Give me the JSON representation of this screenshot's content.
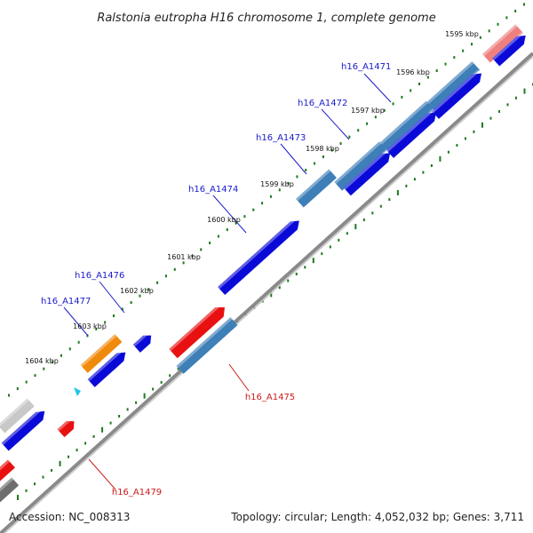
{
  "title": "Ralstonia eutropha H16 chromosome 1, complete genome",
  "footer": {
    "accession": "Accession: NC_008313",
    "topology": "Topology: circular; Length: 4,052,032 bp; Genes: 3,711"
  },
  "ticks": [
    "1595 kbp",
    "1596 kbp",
    "1597 kbp",
    "1598 kbp",
    "1599 kbp",
    "1600 kbp",
    "1601 kbp",
    "1602 kbp",
    "1603 kbp",
    "1604 kbp"
  ],
  "gene_labels": [
    {
      "text": "h16_A1471",
      "color": "#1a1acc"
    },
    {
      "text": "h16_A1472",
      "color": "#1a1acc"
    },
    {
      "text": "h16_A1473",
      "color": "#1a1acc"
    },
    {
      "text": "h16_A1474",
      "color": "#1a1acc"
    },
    {
      "text": "h16_A1476",
      "color": "#1a1acc"
    },
    {
      "text": "h16_A1477",
      "color": "#1a1acc"
    },
    {
      "text": "h16_A1475",
      "color": "#cc1a1a"
    },
    {
      "text": "h16_A1479",
      "color": "#cc1a1a"
    }
  ],
  "colors": {
    "blue": "#0a0ad8",
    "red": "#e81010",
    "steel": "#3e7fb8",
    "orange": "#f08a0c",
    "pink": "#ef8080",
    "gray": "#c8c8c8",
    "darkgray": "#6e6e6e",
    "cyan": "#20c4e8",
    "dots": "#1c7a1c",
    "backbone": "#8a8a8a"
  }
}
